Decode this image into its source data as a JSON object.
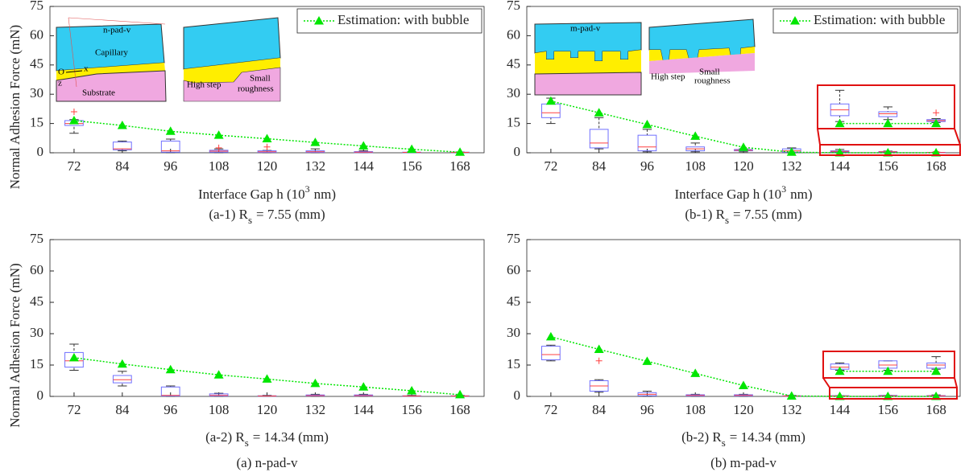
{
  "chart_data": [
    {
      "type": "box",
      "categories": [
        72,
        84,
        96,
        108,
        120,
        132,
        144,
        156,
        168
      ],
      "ylim": [
        0,
        75
      ],
      "yticks": [
        0,
        15,
        30,
        45,
        60,
        75
      ],
      "ylabel": "Normal Adhesion Force (mN)",
      "xlabel": {
        "prefix": "Interface Gap h (10",
        "sup": "3",
        "suffix": "nm)"
      },
      "caption": {
        "prefix": "(a-1) R",
        "sub": "s",
        "suffix": "= 7.55 (mm)"
      },
      "box_color": "#7070ff",
      "median_color": "#ff4040",
      "boxes": [
        {
          "whislo": 10,
          "q1": 14,
          "med": 15,
          "q3": 16.5,
          "whishi": 17,
          "fliers": [
            21
          ]
        },
        {
          "whislo": 1,
          "q1": 1.5,
          "med": 2,
          "q3": 5.5,
          "whishi": 6,
          "fliers": []
        },
        {
          "whislo": 0,
          "q1": 0.3,
          "med": 1,
          "q3": 6,
          "whishi": 7,
          "fliers": []
        },
        {
          "whislo": 0,
          "q1": 0.3,
          "med": 0.8,
          "q3": 1.3,
          "whishi": 2,
          "fliers": [
            2.5
          ]
        },
        {
          "whislo": 0,
          "q1": 0.2,
          "med": 0.5,
          "q3": 1,
          "whishi": 1.2,
          "fliers": [
            3
          ]
        },
        {
          "whislo": 0,
          "q1": 0.2,
          "med": 0.5,
          "q3": 1,
          "whishi": 2,
          "fliers": []
        },
        {
          "whislo": 0,
          "q1": 0.1,
          "med": 0.3,
          "q3": 0.6,
          "whishi": 1,
          "fliers": []
        },
        {
          "whislo": 0,
          "q1": 0.1,
          "med": 0.2,
          "q3": 0.3,
          "whishi": 0.5,
          "fliers": []
        },
        {
          "whislo": 0,
          "q1": 0.1,
          "med": 0.2,
          "q3": 0.3,
          "whishi": 0.4,
          "fliers": []
        }
      ],
      "series": [
        {
          "name": "Estimation: with bubble",
          "color": "#00e600",
          "values": [
            16.5,
            14,
            11,
            9,
            7.2,
            5.3,
            3.5,
            1.8,
            0.3
          ]
        }
      ],
      "inset": [
        "n-pad-v",
        "Capillary",
        "O",
        "x",
        "z",
        "Substrate",
        "High step",
        "Small",
        "roughness"
      ]
    },
    {
      "type": "box",
      "categories": [
        72,
        84,
        96,
        108,
        120,
        132,
        144,
        156,
        168
      ],
      "ylim": [
        0,
        75
      ],
      "yticks": [
        0,
        15,
        30,
        45,
        60,
        75
      ],
      "xlabel": {
        "prefix": "Interface Gap h (10",
        "sup": "3",
        "suffix": "nm)"
      },
      "caption": {
        "prefix": "(b-1) R",
        "sub": "s",
        "suffix": "= 7.55 (mm)"
      },
      "box_color": "#7070ff",
      "median_color": "#ff4040",
      "boxes": [
        {
          "whislo": 15,
          "q1": 18,
          "med": 20.5,
          "q3": 25,
          "whishi": 28,
          "fliers": []
        },
        {
          "whislo": 2,
          "q1": 2.5,
          "med": 5,
          "q3": 12,
          "whishi": 18,
          "fliers": []
        },
        {
          "whislo": 0.5,
          "q1": 1,
          "med": 3,
          "q3": 9,
          "whishi": 12,
          "fliers": []
        },
        {
          "whislo": 0.5,
          "q1": 1,
          "med": 2,
          "q3": 3,
          "whishi": 5,
          "fliers": []
        },
        {
          "whislo": 0.5,
          "q1": 1,
          "med": 1.3,
          "q3": 1.7,
          "whishi": 2,
          "fliers": []
        },
        {
          "whislo": 0,
          "q1": 0.3,
          "med": 1,
          "q3": 2,
          "whishi": 2.5,
          "fliers": []
        },
        {
          "whislo": 0.1,
          "q1": 0.4,
          "med": 0.7,
          "q3": 1,
          "whishi": 1.7,
          "fliers": []
        },
        {
          "whislo": 0.2,
          "q1": 0.35,
          "med": 0.5,
          "q3": 0.6,
          "whishi": 0.85,
          "fliers": []
        },
        {
          "whislo": 0.05,
          "q1": 0.1,
          "med": 0.15,
          "q3": 0.2,
          "whishi": 0.25,
          "fliers": [
            0.55
          ]
        }
      ],
      "series": [
        {
          "name": "Estimation: with bubble",
          "color": "#00e600",
          "values": [
            26.5,
            20.5,
            14.5,
            8.5,
            2.8,
            0.3,
            0,
            0,
            0
          ]
        }
      ],
      "inset": [
        "m-pad-v",
        "High step",
        "Small",
        "roughness"
      ]
    },
    {
      "type": "box",
      "categories": [
        72,
        84,
        96,
        108,
        120,
        132,
        144,
        156,
        168
      ],
      "ylim": [
        0,
        75
      ],
      "yticks": [
        0,
        15,
        30,
        45,
        60,
        75
      ],
      "ylabel": "Normal Adhesion Force (mN)",
      "caption": {
        "prefix": "(a-2) R",
        "sub": "s",
        "suffix": "= 14.34 (mm)"
      },
      "panel_caption": "(a) n-pad-v",
      "box_color": "#7070ff",
      "median_color": "#ff4040",
      "boxes": [
        {
          "whislo": 12.5,
          "q1": 14,
          "med": 17,
          "q3": 21,
          "whishi": 25,
          "fliers": []
        },
        {
          "whislo": 5,
          "q1": 6.5,
          "med": 8,
          "q3": 10,
          "whishi": 12,
          "fliers": []
        },
        {
          "whislo": 0,
          "q1": 0.2,
          "med": 0.5,
          "q3": 4.5,
          "whishi": 5,
          "fliers": []
        },
        {
          "whislo": 0,
          "q1": 0.2,
          "med": 0.5,
          "q3": 1.2,
          "whishi": 1.5,
          "fliers": []
        },
        {
          "whislo": 0,
          "q1": 0.1,
          "med": 0.2,
          "q3": 0.3,
          "whishi": 0.5,
          "fliers": []
        },
        {
          "whislo": 0,
          "q1": 0.2,
          "med": 0.4,
          "q3": 0.7,
          "whishi": 1,
          "fliers": []
        },
        {
          "whislo": 0,
          "q1": 0.2,
          "med": 0.4,
          "q3": 0.7,
          "whishi": 1,
          "fliers": []
        },
        {
          "whislo": 0,
          "q1": 0.1,
          "med": 0.2,
          "q3": 0.3,
          "whishi": 0.5,
          "fliers": []
        },
        {
          "whislo": 0,
          "q1": 0.1,
          "med": 0.2,
          "q3": 0.3,
          "whishi": 0.5,
          "fliers": []
        }
      ],
      "series": [
        {
          "color": "#00e600",
          "values": [
            18.5,
            15.5,
            12.8,
            10.3,
            8.3,
            6.2,
            4.5,
            2.7,
            0.8
          ]
        }
      ]
    },
    {
      "type": "box",
      "categories": [
        72,
        84,
        96,
        108,
        120,
        132,
        144,
        156,
        168
      ],
      "ylim": [
        0,
        75
      ],
      "yticks": [
        0,
        15,
        30,
        45,
        60,
        75
      ],
      "caption": {
        "prefix": "(b-2) R",
        "sub": "s",
        "suffix": "= 14.34 (mm)"
      },
      "panel_caption": "(b) m-pad-v",
      "box_color": "#7070ff",
      "median_color": "#ff4040",
      "boxes": [
        {
          "whislo": 17,
          "q1": 17.5,
          "med": 20,
          "q3": 24,
          "whishi": 24.5,
          "fliers": []
        },
        {
          "whislo": 2,
          "q1": 2.5,
          "med": 5,
          "q3": 7.5,
          "whishi": 8,
          "fliers": [
            17
          ]
        },
        {
          "whislo": 0,
          "q1": 0.3,
          "med": 1,
          "q3": 1.8,
          "whishi": 2.5,
          "fliers": []
        },
        {
          "whislo": 0,
          "q1": 0.2,
          "med": 0.5,
          "q3": 0.8,
          "whishi": 1,
          "fliers": []
        },
        {
          "whislo": 0,
          "q1": 0.2,
          "med": 0.5,
          "q3": 0.8,
          "whishi": 1,
          "fliers": []
        },
        {
          "whislo": 0,
          "q1": 0.1,
          "med": 0.2,
          "q3": 0.3,
          "whishi": 0.5,
          "fliers": []
        },
        {
          "whislo": 0.05,
          "q1": 0.1,
          "med": 0.2,
          "q3": 0.35,
          "whishi": 0.4,
          "fliers": []
        },
        {
          "whislo": 0.05,
          "q1": 0.15,
          "med": 0.3,
          "q3": 0.5,
          "whishi": 0.5,
          "fliers": []
        },
        {
          "whislo": 0.1,
          "q1": 0.15,
          "med": 0.3,
          "q3": 0.4,
          "whishi": 0.7,
          "fliers": []
        }
      ],
      "series": [
        {
          "color": "#00e600",
          "values": [
            28.5,
            22.5,
            16.8,
            11,
            5.2,
            0.2,
            0,
            0,
            0
          ]
        }
      ]
    }
  ]
}
